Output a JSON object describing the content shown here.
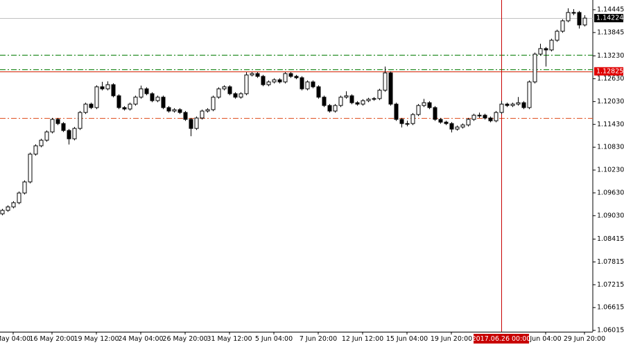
{
  "chart_data": {
    "type": "candlestick",
    "categories": [
      null,
      null,
      "May 04:00",
      null,
      null,
      null,
      null,
      null,
      null,
      "16 May 20:00",
      null,
      null,
      null,
      null,
      null,
      null,
      null,
      "19 May 12:00",
      null,
      null,
      null,
      null,
      null,
      null,
      null,
      "24 May 04:00",
      null,
      null,
      null,
      null,
      null,
      null,
      null,
      "26 May 20:00",
      null,
      null,
      null,
      null,
      null,
      null,
      null,
      "31 May 12:00",
      null,
      null,
      null,
      null,
      null,
      null,
      null,
      "5 Jun 04:00",
      null,
      null,
      null,
      null,
      null,
      null,
      null,
      "7 Jun 20:00",
      null,
      null,
      null,
      null,
      null,
      null,
      null,
      "12 Jun 12:00",
      null,
      null,
      null,
      null,
      null,
      null,
      null,
      "15 Jun 04:00",
      null,
      null,
      null,
      null,
      null,
      null,
      null,
      "19 Jun 20:00",
      null,
      null,
      null,
      null,
      null,
      null,
      null,
      null,
      "2017.06.26 00:00",
      null,
      null,
      null,
      null,
      null,
      null,
      null,
      "Jun 04:00",
      null,
      null,
      null,
      null,
      null,
      null,
      "29 Jun 20:00"
    ],
    "open": [
      1.0908,
      1.09171,
      1.09262,
      1.09372,
      1.09627,
      1.09919,
      1.10649,
      1.10868,
      1.11014,
      1.11233,
      1.11562,
      1.11452,
      1.1127,
      1.11051,
      1.11324,
      1.11744,
      1.11963,
      1.11872,
      1.12419,
      1.12365,
      1.12474,
      1.12182,
      1.11872,
      1.11835,
      1.11963,
      1.12146,
      1.12365,
      1.12237,
      1.12054,
      1.12146,
      1.11872,
      1.11781,
      1.11817,
      1.11744,
      1.11562,
      1.11324,
      1.11598,
      1.11781,
      1.11817,
      1.12146,
      1.12365,
      1.12419,
      1.12237,
      1.12146,
      1.12237,
      1.1273,
      1.12766,
      1.12693,
      1.12474,
      1.12547,
      1.12602,
      1.12547,
      1.12766,
      1.12693,
      1.12657,
      1.12365,
      1.12547,
      1.12419,
      1.12146,
      1.11927,
      1.11781,
      1.11927,
      1.12146,
      1.12182,
      1.12,
      1.11963,
      1.12054,
      1.12091,
      1.12109,
      1.12328,
      1.12784,
      1.11963,
      1.11562,
      1.11452,
      1.11452,
      1.11689,
      1.11927,
      1.12,
      1.11872,
      1.11562,
      1.11489,
      1.11452,
      1.11306,
      1.11361,
      1.11416,
      1.11562,
      1.11671,
      1.11671,
      1.11598,
      1.11525,
      1.11744,
      1.11963,
      1.11927,
      1.11963,
      1.12,
      1.11872,
      1.12547,
      1.13277,
      1.13423,
      1.13387,
      1.13642,
      1.13879,
      1.14153,
      1.14372,
      1.14372,
      1.14044
    ],
    "high": [
      1.09211,
      1.09302,
      1.09412,
      1.09667,
      1.09959,
      1.10689,
      1.10908,
      1.11054,
      1.11273,
      1.11602,
      1.11602,
      1.11492,
      1.1131,
      1.11364,
      1.11784,
      1.12003,
      1.12003,
      1.12459,
      1.1255,
      1.1256,
      1.12514,
      1.12222,
      1.11912,
      1.12003,
      1.12186,
      1.1245,
      1.12405,
      1.12277,
      1.12186,
      1.12186,
      1.11912,
      1.11857,
      1.11857,
      1.11784,
      1.11602,
      1.11638,
      1.11821,
      1.11857,
      1.12186,
      1.12405,
      1.12459,
      1.12459,
      1.12277,
      1.12277,
      1.128,
      1.12806,
      1.12806,
      1.12733,
      1.12587,
      1.12642,
      1.12642,
      1.12806,
      1.12806,
      1.12733,
      1.12697,
      1.12587,
      1.12587,
      1.12459,
      1.12186,
      1.11967,
      1.11967,
      1.12186,
      1.123,
      1.12222,
      1.1204,
      1.12094,
      1.12131,
      1.12149,
      1.12368,
      1.1295,
      1.12824,
      1.12003,
      1.11602,
      1.1153,
      1.11729,
      1.11967,
      1.121,
      1.1204,
      1.11912,
      1.11602,
      1.11529,
      1.11492,
      1.11401,
      1.11456,
      1.11602,
      1.11711,
      1.1174,
      1.11711,
      1.11638,
      1.11784,
      1.1205,
      1.12003,
      1.12003,
      1.1215,
      1.1204,
      1.12587,
      1.13317,
      1.1355,
      1.13463,
      1.13682,
      1.13919,
      1.14193,
      1.1448,
      1.1446,
      1.14412,
      1.143
    ],
    "low": [
      1.0904,
      1.09131,
      1.09222,
      1.09332,
      1.09587,
      1.09879,
      1.10609,
      1.10828,
      1.10974,
      1.11193,
      1.11412,
      1.1123,
      1.109,
      1.11011,
      1.11284,
      1.11704,
      1.11832,
      1.11832,
      1.12325,
      1.12325,
      1.12142,
      1.11832,
      1.11795,
      1.11795,
      1.11923,
      1.12106,
      1.12197,
      1.12014,
      1.12014,
      1.11832,
      1.11741,
      1.11741,
      1.11704,
      1.11522,
      1.1112,
      1.11284,
      1.11558,
      1.11741,
      1.11777,
      1.12106,
      1.12325,
      1.12197,
      1.12106,
      1.12106,
      1.12197,
      1.1269,
      1.12653,
      1.12434,
      1.12434,
      1.12507,
      1.12507,
      1.12507,
      1.12653,
      1.12617,
      1.12325,
      1.12325,
      1.12379,
      1.12106,
      1.11887,
      1.11741,
      1.11741,
      1.11887,
      1.12106,
      1.1196,
      1.11923,
      1.11923,
      1.12014,
      1.12051,
      1.12069,
      1.12288,
      1.11923,
      1.11522,
      1.1135,
      1.1138,
      1.11412,
      1.11649,
      1.11887,
      1.11832,
      1.11522,
      1.11449,
      1.11412,
      1.1122,
      1.11266,
      1.11321,
      1.11376,
      1.11522,
      1.116,
      1.11558,
      1.11485,
      1.11485,
      1.11704,
      1.11887,
      1.11887,
      1.11923,
      1.11832,
      1.11832,
      1.12507,
      1.13237,
      1.1295,
      1.13347,
      1.13602,
      1.13839,
      1.14113,
      1.143,
      1.1395,
      1.14004
    ],
    "close": [
      1.09171,
      1.09262,
      1.09372,
      1.09627,
      1.09919,
      1.10649,
      1.10868,
      1.11014,
      1.11233,
      1.11562,
      1.11452,
      1.1127,
      1.11051,
      1.11324,
      1.11744,
      1.11963,
      1.11872,
      1.12419,
      1.12365,
      1.12474,
      1.12182,
      1.11872,
      1.11835,
      1.11963,
      1.12146,
      1.12365,
      1.12237,
      1.12054,
      1.12146,
      1.11872,
      1.11781,
      1.11817,
      1.11744,
      1.11562,
      1.11324,
      1.11598,
      1.11781,
      1.11817,
      1.12146,
      1.12365,
      1.12419,
      1.12237,
      1.12146,
      1.12237,
      1.1273,
      1.12766,
      1.12693,
      1.12474,
      1.12547,
      1.12602,
      1.12547,
      1.12766,
      1.12693,
      1.12657,
      1.12365,
      1.12547,
      1.12419,
      1.12146,
      1.11927,
      1.11781,
      1.11927,
      1.12146,
      1.12182,
      1.12,
      1.11963,
      1.12054,
      1.12091,
      1.12109,
      1.12328,
      1.12784,
      1.11963,
      1.11562,
      1.11452,
      1.11452,
      1.11689,
      1.11927,
      1.12,
      1.11872,
      1.11562,
      1.11489,
      1.11452,
      1.11306,
      1.11361,
      1.11416,
      1.11562,
      1.11671,
      1.11671,
      1.11598,
      1.11525,
      1.11744,
      1.11963,
      1.11927,
      1.11963,
      1.12,
      1.11872,
      1.12547,
      1.13277,
      1.13423,
      1.13387,
      1.13642,
      1.13879,
      1.14153,
      1.14372,
      1.14372,
      1.14044,
      1.14224
    ],
    "ylim": [
      1.0598,
      1.147
    ],
    "yticks": [
      1.14445,
      1.13845,
      {
        "value": 1.1323,
        "label": "1.13230"
      },
      {
        "value": 1.1263,
        "label": "1.12630"
      },
      {
        "value": 1.1203,
        "label": "1.12030"
      },
      {
        "value": 1.1143,
        "label": "1.11430"
      },
      {
        "value": 1.1083,
        "label": "1.10830"
      },
      {
        "value": 1.1023,
        "label": "1.10230"
      },
      {
        "value": 1.0963,
        "label": "1.09630"
      },
      {
        "value": 1.0903,
        "label": "1.09030"
      },
      1.08415,
      1.07815,
      1.07215,
      1.06615,
      1.06015
    ],
    "hlines": [
      {
        "value": 1.14224,
        "color": "#c0c0c0",
        "style": "solid",
        "label_color": "#000000"
      },
      {
        "value": 1.1325,
        "color": "#007a00",
        "style": "dashdot"
      },
      {
        "value": 1.1287,
        "color": "#007a00",
        "style": "dashdot"
      },
      {
        "value": 1.12825,
        "color": "#d42000",
        "style": "solid",
        "label_color": "#e00000"
      },
      {
        "value": 1.1159,
        "color": "#e05020",
        "style": "dashdot"
      }
    ],
    "crosshair_x": "2017.06.26 00:00",
    "crosshair_color": "#c80000",
    "bull_color": "#ffffff",
    "bear_color": "#000000",
    "wick_color": "#000000"
  }
}
